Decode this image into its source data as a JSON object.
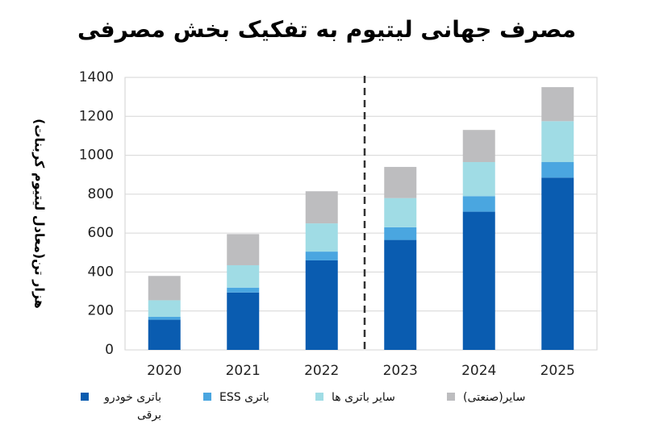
{
  "chart_data": {
    "type": "stacked_bar",
    "title": "مصرف جهانی لیتیوم به تفکیک بخش مصرفی",
    "y_label": "هزار تن(معادل لیتیوم کربنات)",
    "categories": [
      "2020",
      "2021",
      "2022",
      "2023",
      "2024",
      "2025"
    ],
    "series": [
      {
        "name": "باتری خودرو برقی",
        "color": "#0a5cb0",
        "values": [
          155,
          295,
          460,
          565,
          710,
          885
        ]
      },
      {
        "name": "باتری ESS",
        "color": "#4aa6e0",
        "values": [
          15,
          25,
          45,
          65,
          80,
          80
        ]
      },
      {
        "name": "سایر باتری ها",
        "color": "#a0dce5",
        "values": [
          85,
          115,
          145,
          150,
          175,
          210
        ]
      },
      {
        "name": "سایر(صنعتی)",
        "color": "#bdbdbf",
        "values": [
          125,
          160,
          165,
          160,
          165,
          175
        ]
      }
    ],
    "ylim": [
      0,
      1400
    ],
    "yticks": [
      0,
      200,
      400,
      600,
      800,
      1000,
      1200,
      1400
    ],
    "grid": true
  }
}
